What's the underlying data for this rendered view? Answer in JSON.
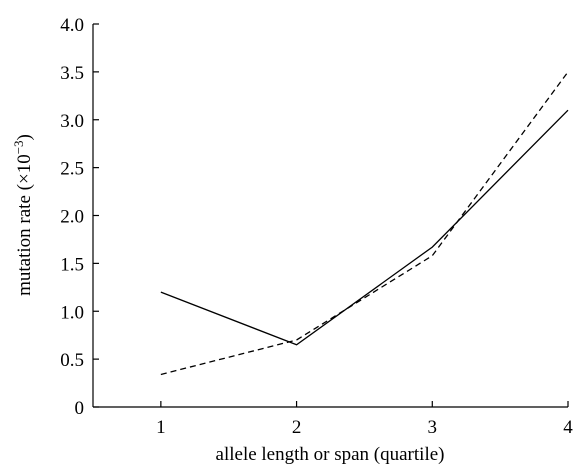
{
  "chart_data": {
    "type": "line",
    "xlabel": "allele length or span (quartile)",
    "ylabel_prefix": "mutation rate (×10",
    "ylabel_exponent": "−3",
    "ylabel_suffix": ")",
    "x": [
      1,
      2,
      3,
      4
    ],
    "xlim": [
      0.5,
      4.0
    ],
    "ylim": [
      0,
      4.0
    ],
    "x_ticks": [
      "1",
      "2",
      "3",
      "4"
    ],
    "y_ticks": [
      "0",
      "0.5",
      "1.0",
      "1.5",
      "2.0",
      "2.5",
      "3.0",
      "3.5",
      "4.0"
    ],
    "grid": false,
    "legend": "none",
    "series": [
      {
        "style": "solid",
        "values": [
          1.2,
          0.65,
          1.67,
          3.1
        ]
      },
      {
        "style": "dashed",
        "values": [
          0.34,
          0.7,
          1.58,
          3.5
        ]
      }
    ]
  }
}
